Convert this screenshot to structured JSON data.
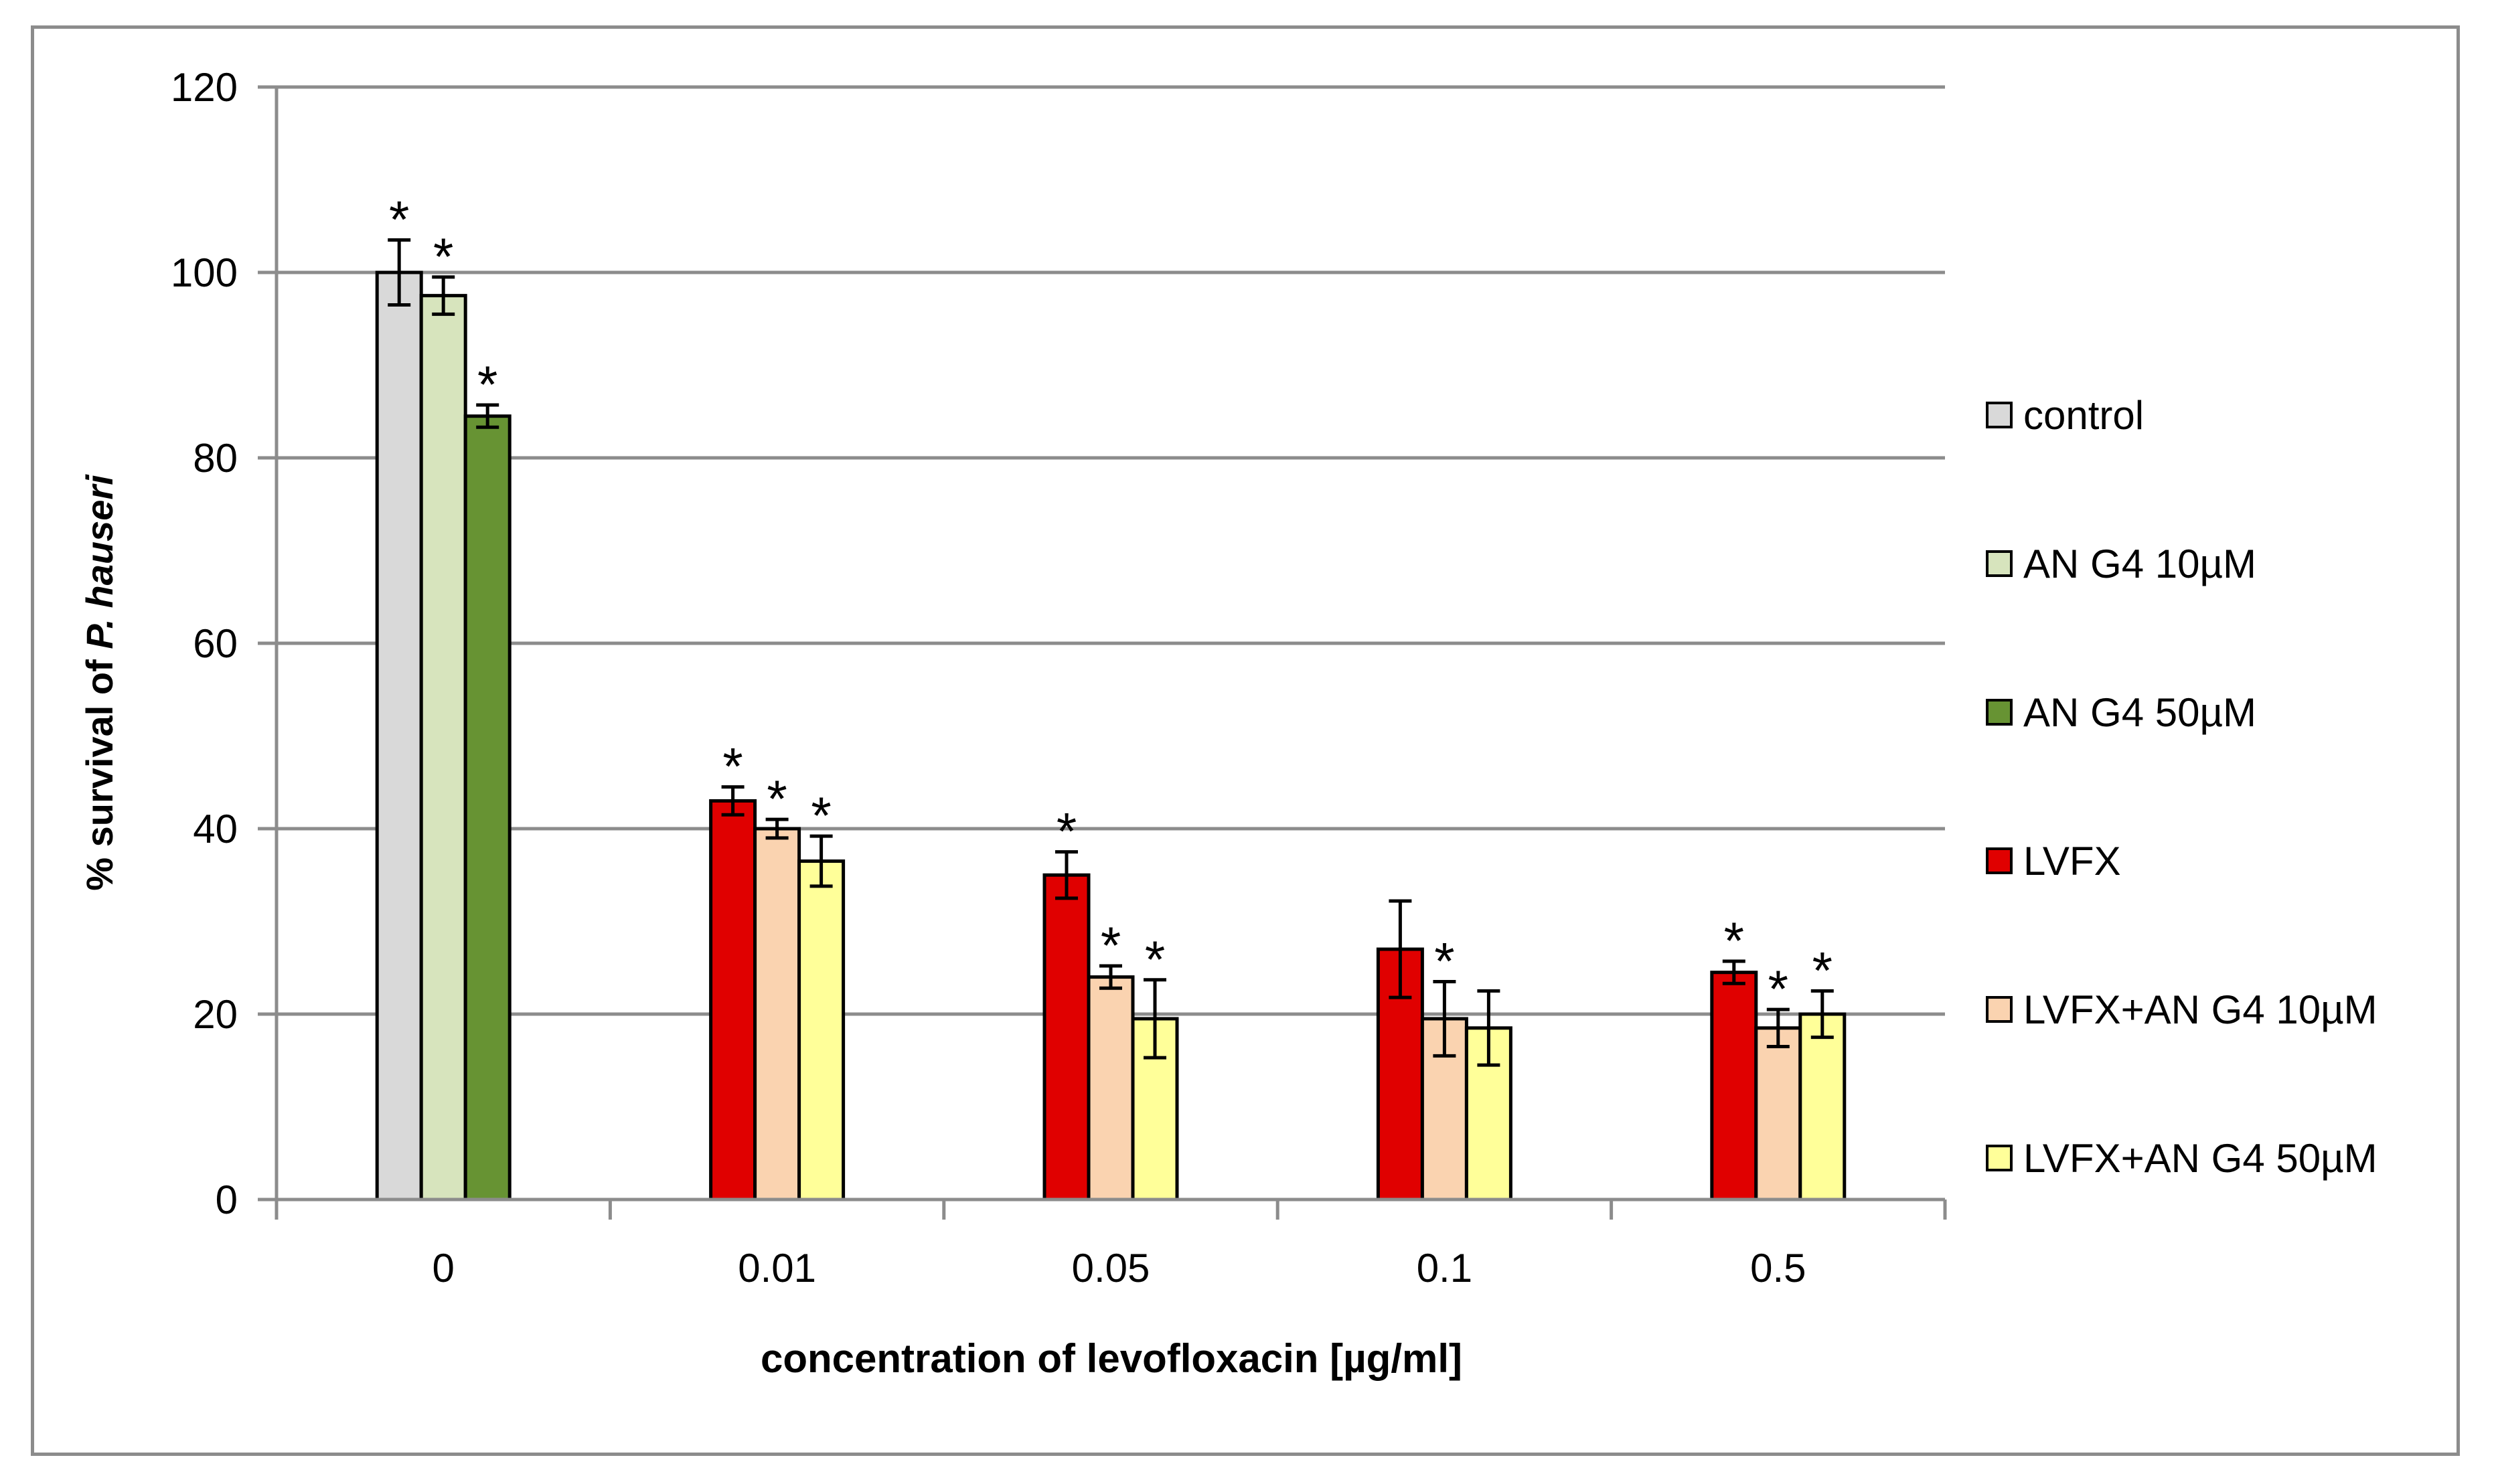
{
  "chart_data": {
    "type": "bar",
    "title": "",
    "xlabel": "concentration of levofloxacin [µg/ml]",
    "ylabel_prefix": "% survival of ",
    "ylabel_italic": "P. hauseri",
    "ylim": [
      0,
      120
    ],
    "yticks": [
      0,
      20,
      40,
      60,
      80,
      100,
      120
    ],
    "grid": true,
    "legend_position": "right",
    "categories": [
      "0",
      "0.01",
      "0.05",
      "0.1",
      "0.5"
    ],
    "series": [
      {
        "name": "control",
        "color": "#d9d9d9",
        "values": [
          100,
          null,
          null,
          null,
          null
        ],
        "errors": [
          3.5,
          null,
          null,
          null,
          null
        ],
        "significant": [
          true,
          false,
          false,
          false,
          false
        ]
      },
      {
        "name": "AN G4 10µM",
        "color": "#d7e4bd",
        "values": [
          97.5,
          null,
          null,
          null,
          null
        ],
        "errors": [
          2.0,
          null,
          null,
          null,
          null
        ],
        "significant": [
          true,
          false,
          false,
          false,
          false
        ]
      },
      {
        "name": "AN G4 50µM",
        "color": "#679333",
        "values": [
          84.5,
          null,
          null,
          null,
          null
        ],
        "errors": [
          1.2,
          null,
          null,
          null,
          null
        ],
        "significant": [
          true,
          false,
          false,
          false,
          false
        ]
      },
      {
        "name": "LVFX",
        "color": "#e00000",
        "values": [
          null,
          43,
          35,
          27,
          24.5
        ],
        "errors": [
          null,
          1.5,
          2.5,
          5.2,
          1.2
        ],
        "significant": [
          false,
          true,
          true,
          false,
          true
        ]
      },
      {
        "name": "LVFX+AN G4 10µM",
        "color": "#fad3b0",
        "values": [
          null,
          40,
          24,
          19.5,
          18.5
        ],
        "errors": [
          null,
          1.0,
          1.2,
          4.0,
          2.0
        ],
        "significant": [
          false,
          true,
          true,
          true,
          true
        ]
      },
      {
        "name": "LVFX+AN G4  50µM",
        "color": "#ffff99",
        "values": [
          null,
          36.5,
          19.5,
          18.5,
          20
        ],
        "errors": [
          null,
          2.7,
          4.2,
          4.0,
          2.5
        ],
        "significant": [
          false,
          true,
          true,
          false,
          true
        ]
      }
    ],
    "significance_marker": "*"
  }
}
